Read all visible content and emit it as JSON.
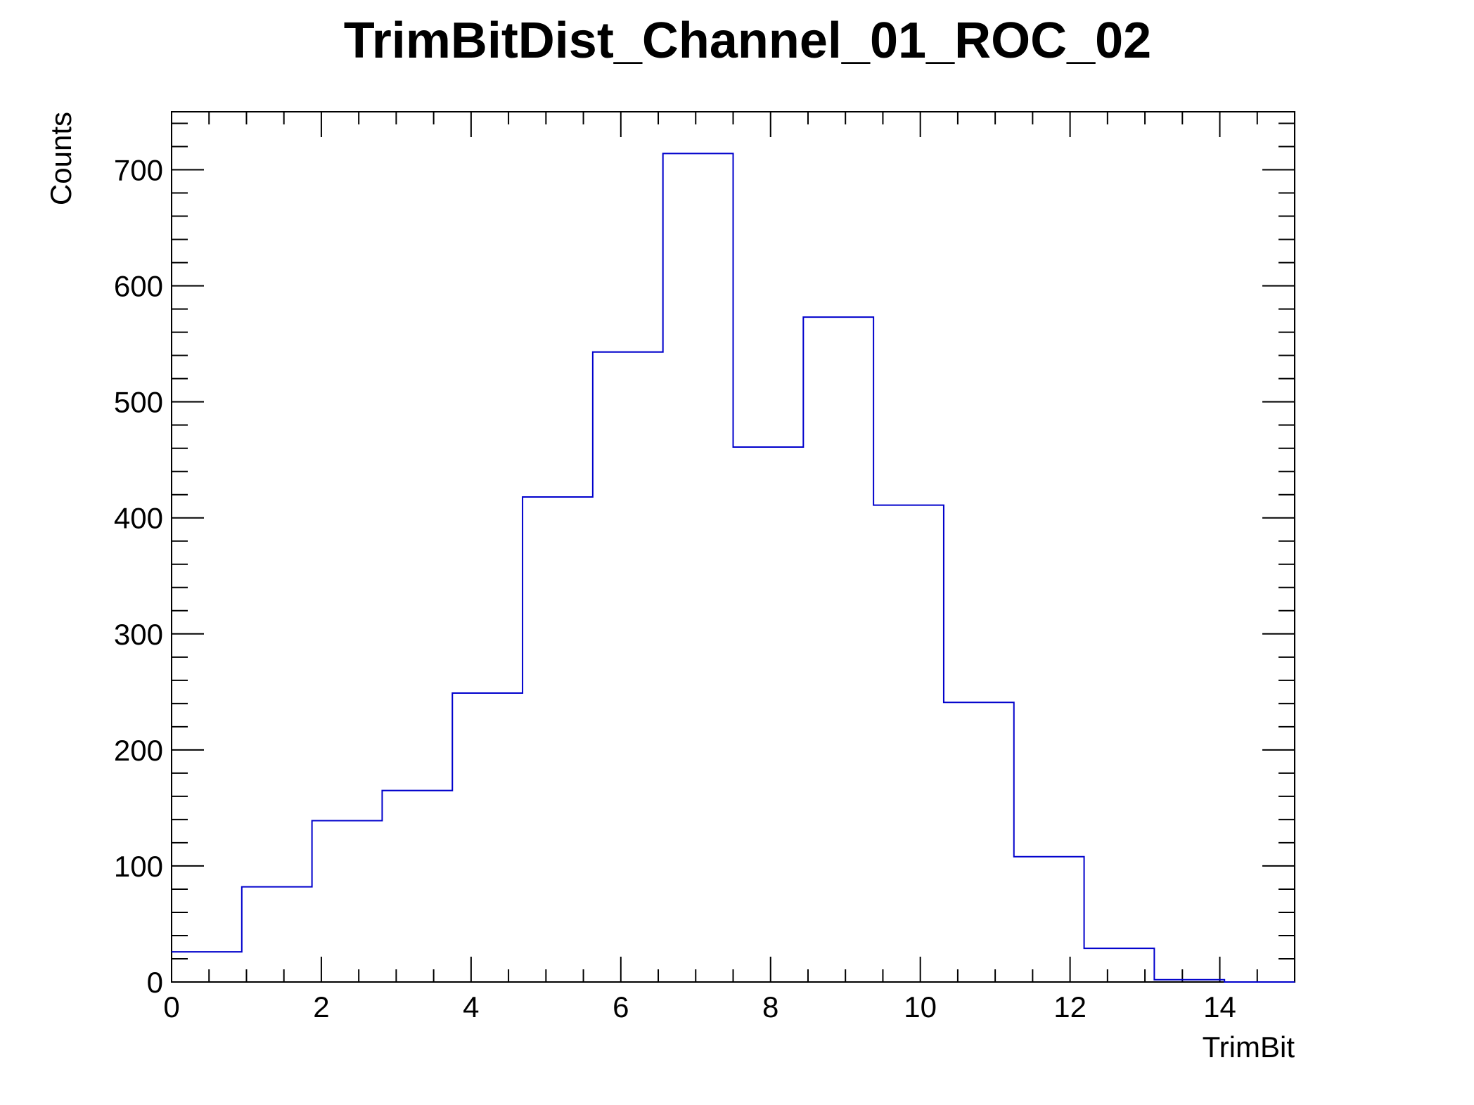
{
  "chart_data": {
    "type": "bar",
    "title": "TrimBitDist_Channel_01_ROC_02",
    "xlabel": "TrimBit",
    "ylabel": "Counts",
    "xlim": [
      0,
      15
    ],
    "ylim": [
      0,
      750
    ],
    "x_ticks": [
      0,
      2,
      4,
      6,
      8,
      10,
      12,
      14
    ],
    "y_ticks": [
      0,
      100,
      200,
      300,
      400,
      500,
      600,
      700
    ],
    "bin_edges": [
      0,
      0.9375,
      1.875,
      2.8125,
      3.75,
      4.6875,
      5.625,
      6.5625,
      7.5,
      8.4375,
      9.375,
      10.3125,
      11.25,
      12.1875,
      13.125,
      14.0625,
      15
    ],
    "values": [
      26,
      82,
      139,
      165,
      249,
      418,
      543,
      714,
      461,
      573,
      411,
      241,
      108,
      29,
      2,
      0
    ],
    "grid": false,
    "line_color": "#0000cc"
  }
}
